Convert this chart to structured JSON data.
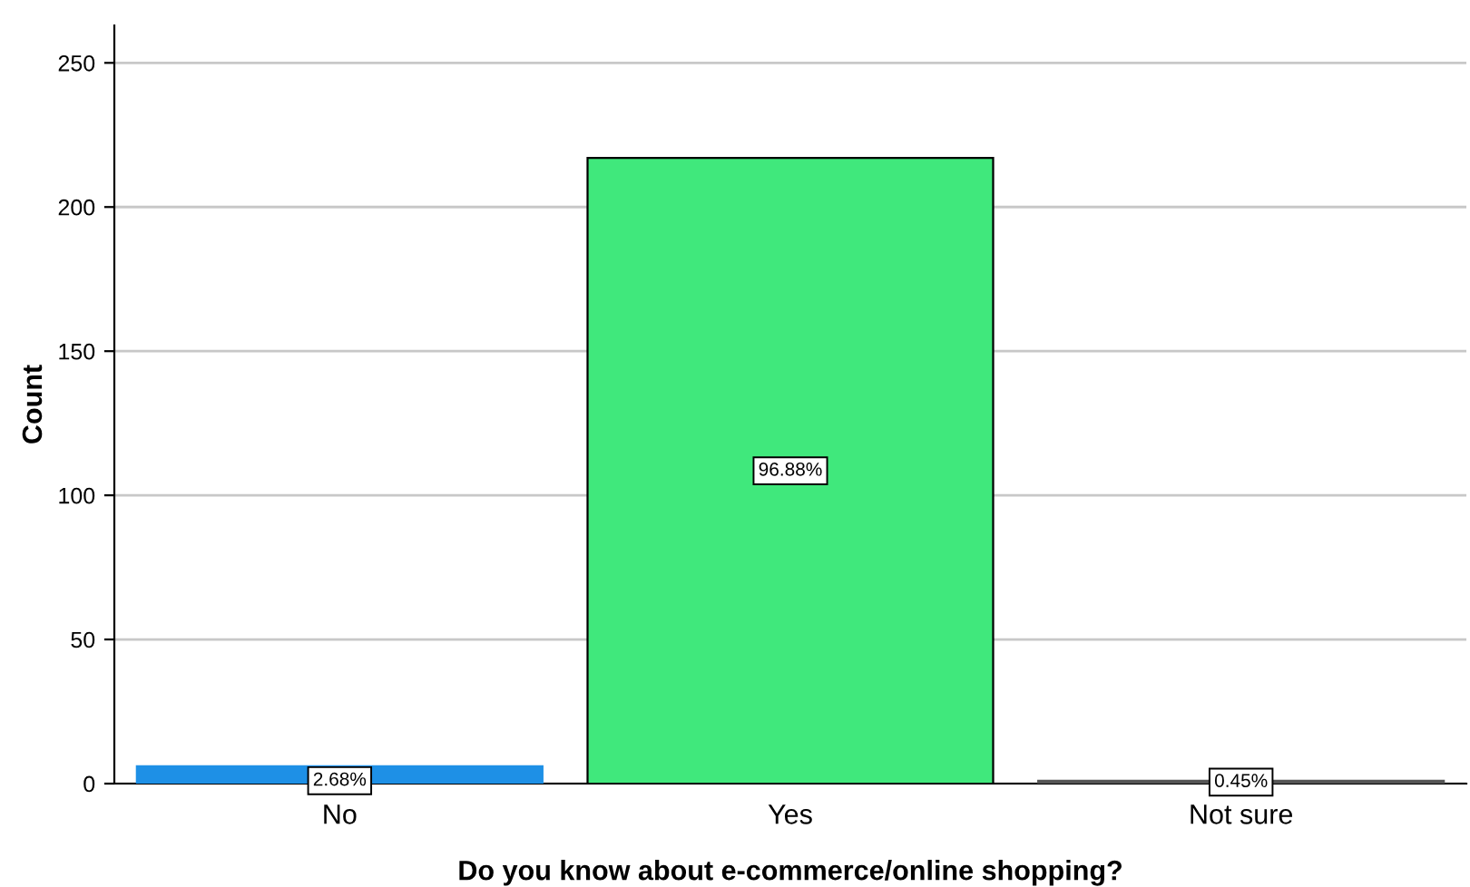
{
  "chart_data": {
    "type": "bar",
    "xlabel": "Do you know about e-commerce/online shopping?",
    "ylabel": "Count",
    "categories": [
      "No",
      "Yes",
      "Not sure"
    ],
    "values": [
      6,
      217,
      1
    ],
    "colors": [
      "#1e90e6",
      "#40e87c",
      "#555555"
    ],
    "annotations": [
      {
        "text": "2.68%",
        "x": "No",
        "y": 1
      },
      {
        "text": "96.88%",
        "x": "Yes",
        "y": 108.5
      },
      {
        "text": "0.45%",
        "x": "Not sure",
        "y": 0.5
      }
    ],
    "ylim": [
      0,
      263
    ],
    "yticks": [
      0,
      50,
      100,
      150,
      200,
      250
    ],
    "grid": "y"
  }
}
